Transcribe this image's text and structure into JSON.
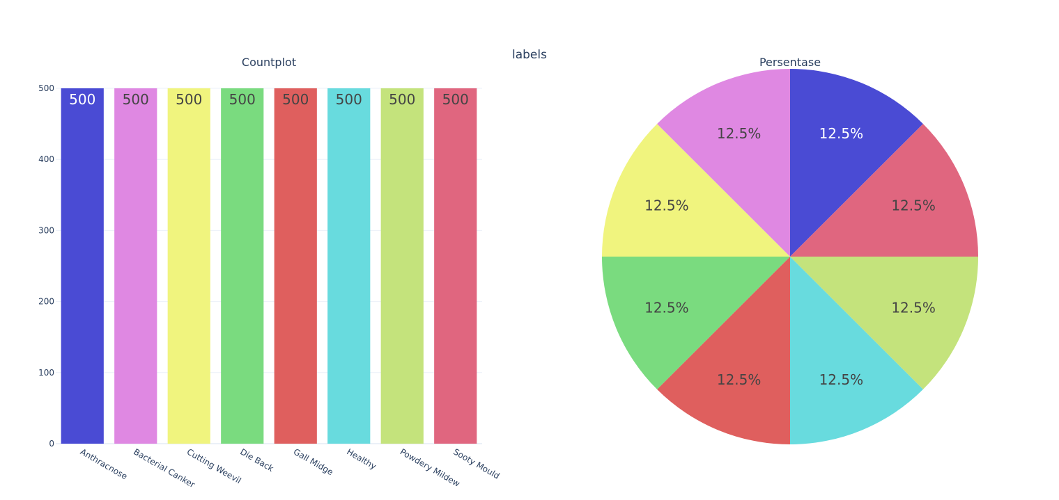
{
  "figure": {
    "title": "labels"
  },
  "chart_data": [
    {
      "type": "bar",
      "title": "Countplot",
      "xlabel": "",
      "ylabel": "",
      "categories": [
        "Anthracnose",
        "Bacterial Canker",
        "Cutting Weevil",
        "Die Back",
        "Gall Midge",
        "Healthy",
        "Powdery Mildew",
        "Sooty Mould"
      ],
      "values": [
        500,
        500,
        500,
        500,
        500,
        500,
        500,
        500
      ],
      "ylim": [
        0,
        500
      ],
      "yticks": [
        0,
        100,
        200,
        300,
        400,
        500
      ],
      "colors": [
        "#4a4bd4",
        "#df88e2",
        "#f0f47e",
        "#7adb7f",
        "#df5f5e",
        "#68dbde",
        "#c4e37c",
        "#e0667f"
      ],
      "label_colors": [
        "#ffffff",
        "#444444",
        "#444444",
        "#444444",
        "#444444",
        "#444444",
        "#444444",
        "#444444"
      ],
      "grid": true,
      "legend": "none"
    },
    {
      "type": "pie",
      "title": "Persentase",
      "slices": [
        {
          "label": "Anthracnose",
          "value": 12.5,
          "text": "12.5%",
          "color": "#4a4bd4",
          "text_color": "#ffffff"
        },
        {
          "label": "Sooty Mould",
          "value": 12.5,
          "text": "12.5%",
          "color": "#e0667f",
          "text_color": "#444444"
        },
        {
          "label": "Powdery Mildew",
          "value": 12.5,
          "text": "12.5%",
          "color": "#c4e37c",
          "text_color": "#444444"
        },
        {
          "label": "Healthy",
          "value": 12.5,
          "text": "12.5%",
          "color": "#68dbde",
          "text_color": "#444444"
        },
        {
          "label": "Gall Midge",
          "value": 12.5,
          "text": "12.5%",
          "color": "#df5f5e",
          "text_color": "#444444"
        },
        {
          "label": "Die Back",
          "value": 12.5,
          "text": "12.5%",
          "color": "#7adb7f",
          "text_color": "#444444"
        },
        {
          "label": "Cutting Weevil",
          "value": 12.5,
          "text": "12.5%",
          "color": "#f0f47e",
          "text_color": "#444444"
        },
        {
          "label": "Bacterial Canker",
          "value": 12.5,
          "text": "12.5%",
          "color": "#df88e2",
          "text_color": "#444444"
        }
      ],
      "start": "top",
      "direction": "clockwise"
    }
  ]
}
